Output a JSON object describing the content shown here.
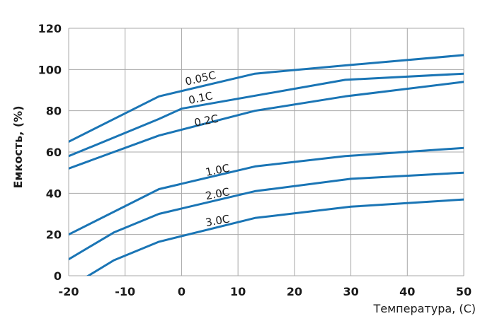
{
  "chart_data": {
    "type": "line",
    "xlabel": "Температура, (С)",
    "ylabel": "Емкость, (%)",
    "xlim": [
      -20,
      50
    ],
    "ylim": [
      0,
      120
    ],
    "xticks": [
      "-20",
      "-10",
      "0",
      "10",
      "20",
      "30",
      "40",
      "50"
    ],
    "yticks": [
      "0",
      "20",
      "40",
      "60",
      "80",
      "100",
      "120"
    ],
    "grid": true,
    "line_color": "#1a75b5",
    "series": [
      {
        "name": "0.05C",
        "x": [
          -20,
          -4,
          13,
          29,
          50
        ],
        "y": [
          65,
          87,
          98,
          102,
          107
        ]
      },
      {
        "name": "0.1C",
        "x": [
          -20,
          -4,
          0,
          29,
          50
        ],
        "y": [
          58,
          76,
          81,
          95,
          98
        ]
      },
      {
        "name": "0.2C",
        "x": [
          -20,
          -4,
          13,
          29,
          50
        ],
        "y": [
          52,
          68,
          80,
          87,
          94
        ]
      },
      {
        "name": "1.0C",
        "x": [
          -20,
          -4,
          13,
          29,
          50
        ],
        "y": [
          20,
          42,
          53,
          58,
          62
        ]
      },
      {
        "name": "2.0C",
        "x": [
          -20,
          -12,
          -4,
          13,
          30,
          50
        ],
        "y": [
          8,
          21,
          30,
          41,
          47,
          50
        ]
      },
      {
        "name": "3.0C",
        "x": [
          -17.7,
          -12,
          -4,
          13,
          30,
          50
        ],
        "y": [
          -2,
          7.5,
          16.5,
          28,
          33.5,
          37
        ]
      }
    ]
  }
}
